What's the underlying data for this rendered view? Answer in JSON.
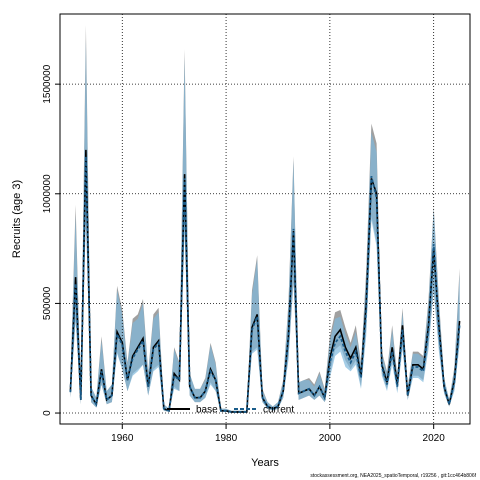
{
  "chart_data": {
    "type": "line",
    "xlabel": "Years",
    "ylabel": "Recruits (age 3)",
    "xlim": [
      1948,
      2027
    ],
    "ylim": [
      -50000,
      1820000
    ],
    "x_ticks": [
      1960,
      1980,
      2000,
      2020
    ],
    "y_ticks": [
      0,
      500000,
      1000000,
      1500000
    ],
    "y_tick_labels": [
      "0",
      "500000",
      "1000000",
      "1500000"
    ],
    "grid": "dotted",
    "legend_position": "bottom-center",
    "colors": {
      "base": "#000000",
      "current": "#1a5c8a",
      "base_band": "#808080",
      "current_band": "#7fb8dc"
    },
    "x": [
      1950,
      1951,
      1952,
      1953,
      1954,
      1955,
      1956,
      1957,
      1958,
      1959,
      1960,
      1961,
      1962,
      1963,
      1964,
      1965,
      1966,
      1967,
      1968,
      1969,
      1970,
      1971,
      1972,
      1973,
      1974,
      1975,
      1976,
      1977,
      1978,
      1979,
      1980,
      1981,
      1982,
      1983,
      1984,
      1985,
      1986,
      1987,
      1988,
      1989,
      1990,
      1991,
      1992,
      1993,
      1994,
      1995,
      1996,
      1997,
      1998,
      1999,
      2000,
      2001,
      2002,
      2003,
      2004,
      2005,
      2006,
      2007,
      2008,
      2009,
      2010,
      2011,
      2012,
      2013,
      2014,
      2015,
      2016,
      2017,
      2018,
      2019,
      2020,
      2021,
      2022,
      2023,
      2024,
      2025
    ],
    "series": [
      {
        "name": "base",
        "style": "solid",
        "values": [
          100000,
          620000,
          60000,
          1200000,
          80000,
          40000,
          200000,
          60000,
          80000,
          370000,
          320000,
          150000,
          260000,
          300000,
          340000,
          120000,
          300000,
          330000,
          20000,
          10000,
          180000,
          150000,
          1090000,
          120000,
          70000,
          70000,
          100000,
          200000,
          150000,
          10000,
          10000,
          5000,
          5000,
          5000,
          5000,
          390000,
          450000,
          70000,
          30000,
          20000,
          30000,
          100000,
          350000,
          830000,
          90000,
          100000,
          110000,
          80000,
          120000,
          70000,
          250000,
          350000,
          380000,
          300000,
          250000,
          300000,
          170000,
          500000,
          1070000,
          1000000,
          220000,
          140000,
          300000,
          130000,
          400000,
          80000,
          220000,
          220000,
          200000,
          400000,
          750000,
          400000,
          120000,
          40000,
          150000,
          420000
        ],
        "band_lower": [
          70000,
          430000,
          40000,
          900000,
          50000,
          25000,
          130000,
          40000,
          50000,
          280000,
          200000,
          100000,
          180000,
          200000,
          220000,
          80000,
          200000,
          220000,
          10000,
          5000,
          120000,
          100000,
          850000,
          80000,
          50000,
          50000,
          70000,
          140000,
          100000,
          5000,
          5000,
          0,
          0,
          0,
          0,
          280000,
          300000,
          50000,
          20000,
          10000,
          20000,
          70000,
          250000,
          600000,
          60000,
          70000,
          80000,
          60000,
          80000,
          50000,
          180000,
          290000,
          310000,
          240000,
          200000,
          240000,
          120000,
          380000,
          900000,
          780000,
          180000,
          110000,
          240000,
          100000,
          310000,
          60000,
          170000,
          170000,
          150000,
          310000,
          560000,
          300000,
          90000,
          30000,
          110000,
          330000
        ],
        "band_upper": [
          150000,
          950000,
          90000,
          1770000,
          120000,
          70000,
          350000,
          100000,
          130000,
          580000,
          470000,
          230000,
          430000,
          450000,
          520000,
          190000,
          450000,
          480000,
          40000,
          20000,
          300000,
          230000,
          1660000,
          180000,
          110000,
          110000,
          160000,
          320000,
          230000,
          20000,
          20000,
          10000,
          10000,
          10000,
          10000,
          560000,
          720000,
          110000,
          50000,
          30000,
          50000,
          150000,
          500000,
          1170000,
          140000,
          150000,
          160000,
          130000,
          190000,
          110000,
          350000,
          460000,
          470000,
          390000,
          320000,
          400000,
          230000,
          650000,
          1320000,
          1230000,
          280000,
          190000,
          400000,
          170000,
          480000,
          120000,
          280000,
          280000,
          260000,
          520000,
          940000,
          520000,
          160000,
          60000,
          210000,
          660000
        ]
      },
      {
        "name": "current",
        "style": "dashed",
        "values": [
          95000,
          590000,
          60000,
          1170000,
          80000,
          40000,
          190000,
          60000,
          80000,
          360000,
          310000,
          150000,
          250000,
          290000,
          330000,
          120000,
          290000,
          320000,
          20000,
          10000,
          170000,
          150000,
          1070000,
          120000,
          70000,
          70000,
          100000,
          190000,
          150000,
          10000,
          10000,
          5000,
          5000,
          5000,
          5000,
          380000,
          440000,
          70000,
          30000,
          20000,
          30000,
          100000,
          340000,
          840000,
          90000,
          100000,
          110000,
          80000,
          120000,
          70000,
          230000,
          320000,
          350000,
          280000,
          230000,
          280000,
          160000,
          470000,
          1080000,
          980000,
          210000,
          130000,
          280000,
          120000,
          380000,
          80000,
          210000,
          210000,
          190000,
          380000,
          770000,
          380000,
          120000,
          40000,
          140000,
          400000
        ],
        "band_lower": [
          70000,
          420000,
          40000,
          880000,
          50000,
          25000,
          130000,
          40000,
          50000,
          270000,
          200000,
          100000,
          170000,
          190000,
          220000,
          80000,
          190000,
          210000,
          10000,
          5000,
          110000,
          100000,
          830000,
          80000,
          50000,
          50000,
          70000,
          130000,
          100000,
          5000,
          5000,
          0,
          0,
          0,
          0,
          270000,
          290000,
          50000,
          20000,
          10000,
          20000,
          70000,
          240000,
          600000,
          60000,
          70000,
          80000,
          60000,
          80000,
          50000,
          160000,
          260000,
          280000,
          210000,
          190000,
          220000,
          110000,
          350000,
          880000,
          760000,
          170000,
          100000,
          220000,
          90000,
          290000,
          60000,
          160000,
          160000,
          140000,
          290000,
          560000,
          280000,
          90000,
          30000,
          100000,
          310000
        ],
        "band_upper": [
          140000,
          900000,
          90000,
          1700000,
          120000,
          70000,
          330000,
          100000,
          130000,
          560000,
          450000,
          220000,
          410000,
          430000,
          500000,
          180000,
          430000,
          460000,
          40000,
          20000,
          290000,
          220000,
          1620000,
          180000,
          110000,
          110000,
          150000,
          310000,
          220000,
          20000,
          20000,
          10000,
          10000,
          10000,
          10000,
          540000,
          700000,
          100000,
          50000,
          30000,
          50000,
          140000,
          480000,
          1150000,
          140000,
          150000,
          150000,
          120000,
          180000,
          100000,
          330000,
          430000,
          440000,
          360000,
          300000,
          370000,
          220000,
          620000,
          1280000,
          1190000,
          270000,
          180000,
          380000,
          160000,
          460000,
          120000,
          270000,
          270000,
          250000,
          500000,
          930000,
          500000,
          160000,
          60000,
          200000,
          630000
        ]
      }
    ]
  },
  "footer_note": "stockassessment.org, NEA2025_spatioTemporal, r19256 , git:1cc464b806f"
}
